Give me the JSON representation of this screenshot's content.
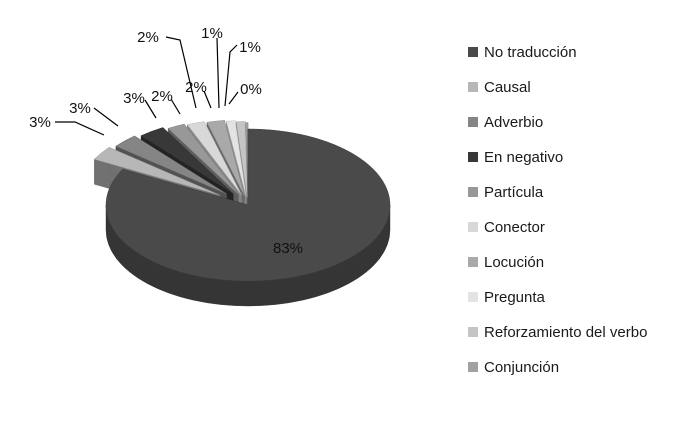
{
  "chart_data": {
    "type": "pie",
    "three_d": true,
    "exploded": true,
    "legend_position": "right",
    "categories": [
      "No traducción",
      "Causal",
      "Adverbio",
      "En negativo",
      "Partícula",
      "Conector",
      "Locución",
      "Pregunta",
      "Reforzamiento del verbo",
      "Conjunción"
    ],
    "values": [
      83,
      3,
      3,
      3,
      2,
      2,
      2,
      1,
      1,
      0
    ],
    "labels": [
      "83%",
      "3%",
      "3%",
      "3%",
      "2%",
      "2%",
      "2%",
      "1%",
      "1%",
      "0%"
    ],
    "colors": [
      "#4a4a4a",
      "#b7b7b7",
      "#858585",
      "#383838",
      "#989898",
      "#d8d8d8",
      "#a9a9a9",
      "#e3e3e3",
      "#c4c4c4",
      "#a1a1a1"
    ]
  }
}
